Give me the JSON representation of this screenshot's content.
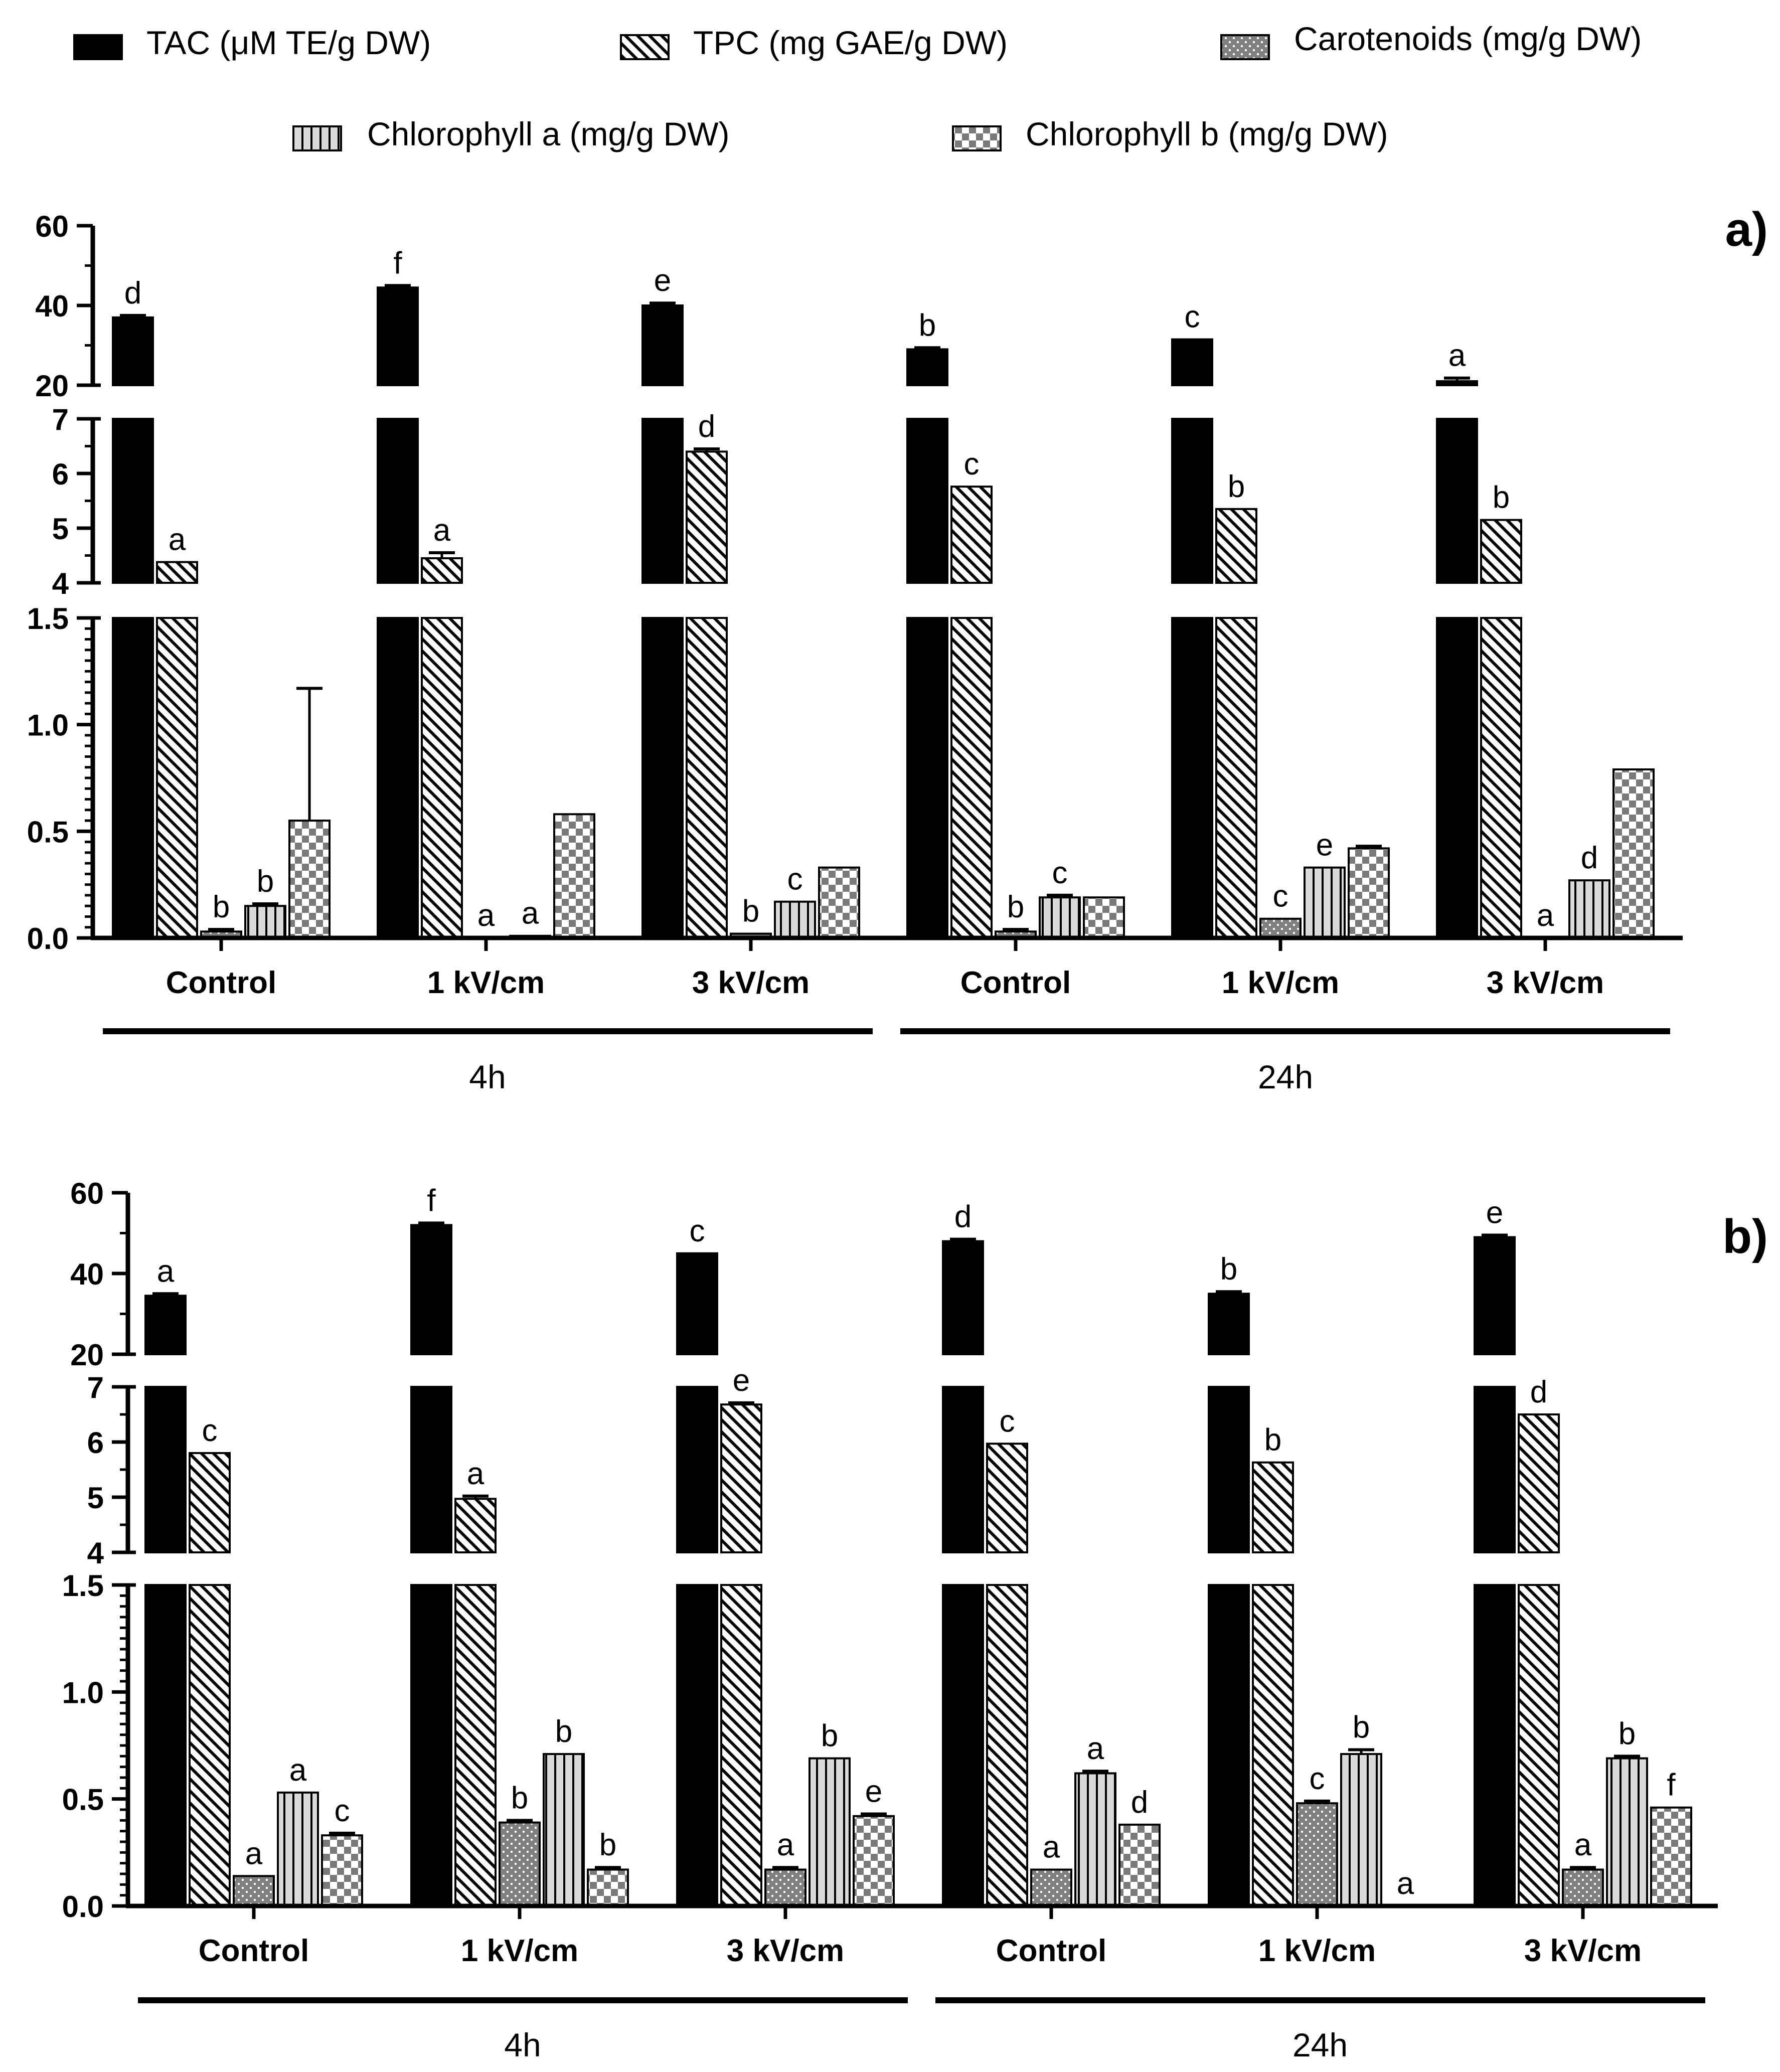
{
  "legend": {
    "items": [
      {
        "key": "tac",
        "label": "TAC (μM TE/g DW)",
        "pattern": "solid"
      },
      {
        "key": "tpc",
        "label": "TPC (mg GAE/g DW)",
        "pattern": "diag"
      },
      {
        "key": "car",
        "label": "Carotenoids (mg/g DW)",
        "pattern": "dots"
      },
      {
        "key": "cha",
        "label": "Chlorophyll a (mg/g DW)",
        "pattern": "vlines"
      },
      {
        "key": "chb",
        "label": "Chlorophyll b (mg/g DW)",
        "pattern": "checker"
      }
    ]
  },
  "chart_data": [
    {
      "type": "bar",
      "panel_label": "a)",
      "series_names": [
        "TAC (μM TE/g DW)",
        "TPC (mg GAE/g DW)",
        "Carotenoids (mg/g DW)",
        "Chlorophyll a (mg/g DW)",
        "Chlorophyll b (mg/g DW)"
      ],
      "categories": [
        "Control",
        "1 kV/cm",
        "3 kV/cm",
        "Control",
        "1 kV/cm",
        "3 kV/cm"
      ],
      "groups": [
        {
          "label": "4h",
          "categories": [
            0,
            1,
            2
          ]
        },
        {
          "label": "24h",
          "categories": [
            3,
            4,
            5
          ]
        }
      ],
      "axis_segments": [
        {
          "range": [
            20,
            60
          ],
          "ticks": [
            "20",
            "40",
            "60"
          ]
        },
        {
          "range": [
            4,
            7
          ],
          "ticks": [
            "4",
            "5",
            "6",
            "7"
          ]
        },
        {
          "range": [
            0,
            1.5
          ],
          "ticks": [
            "0.0",
            "0.5",
            "1.0",
            "1.5"
          ]
        }
      ],
      "series": [
        {
          "name": "TAC (μM TE/g DW)",
          "values": [
            37,
            44.5,
            40,
            29,
            31.5,
            21
          ],
          "errors": [
            0.5,
            0.5,
            0.6,
            0.4,
            0,
            0.8
          ],
          "letters": [
            "d",
            "f",
            "e",
            "b",
            "c",
            "a"
          ]
        },
        {
          "name": "TPC (mg GAE/g DW)",
          "values": [
            4.38,
            4.45,
            6.4,
            5.76,
            5.35,
            5.15
          ],
          "errors": [
            0,
            0.1,
            0.05,
            0,
            0,
            0
          ],
          "letters": [
            "a",
            "a",
            "d",
            "c",
            "b",
            "b"
          ]
        },
        {
          "name": "Carotenoids (mg/g DW)",
          "values": [
            0.03,
            0,
            0.02,
            0.03,
            0.09,
            0
          ],
          "errors": [
            0.01,
            0,
            0,
            0.01,
            0,
            0
          ],
          "letters": [
            "b",
            "a",
            "b",
            "b",
            "c",
            "a"
          ]
        },
        {
          "name": "Chlorophyll a (mg/g DW)",
          "values": [
            0.15,
            0.01,
            0.17,
            0.19,
            0.33,
            0.27
          ],
          "errors": [
            0.01,
            0,
            0,
            0.01,
            0,
            0
          ],
          "letters": [
            "b",
            "a",
            "c",
            "c",
            "e",
            "d"
          ]
        },
        {
          "name": "Chlorophyll b (mg/g DW)",
          "values": [
            0.55,
            0.58,
            0.33,
            0.19,
            0.42,
            0.79
          ],
          "errors": [
            0.62,
            0,
            0,
            0,
            0.01,
            0
          ],
          "letters": [
            "",
            "",
            "",
            "",
            "",
            ""
          ]
        }
      ]
    },
    {
      "type": "bar",
      "panel_label": "b)",
      "series_names": [
        "TAC (μM TE/g DW)",
        "TPC (mg GAE/g DW)",
        "Carotenoids (mg/g DW)",
        "Chlorophyll a (mg/g DW)",
        "Chlorophyll b (mg/g DW)"
      ],
      "categories": [
        "Control",
        "1 kV/cm",
        "3 kV/cm",
        "Control",
        "1 kV/cm",
        "3 kV/cm"
      ],
      "groups": [
        {
          "label": "4h",
          "categories": [
            0,
            1,
            2
          ]
        },
        {
          "label": "24h",
          "categories": [
            3,
            4,
            5
          ]
        }
      ],
      "axis_segments": [
        {
          "range": [
            20,
            60
          ],
          "ticks": [
            "20",
            "40",
            "60"
          ]
        },
        {
          "range": [
            4,
            7
          ],
          "ticks": [
            "4",
            "5",
            "6",
            "7"
          ]
        },
        {
          "range": [
            0,
            1.5
          ],
          "ticks": [
            "0.0",
            "0.5",
            "1.0",
            "1.5"
          ]
        }
      ],
      "series": [
        {
          "name": "TAC (μM TE/g DW)",
          "values": [
            34.5,
            52,
            45,
            48,
            35,
            49
          ],
          "errors": [
            0.5,
            0.5,
            0,
            0.5,
            0.5,
            0.5
          ],
          "letters": [
            "a",
            "f",
            "c",
            "d",
            "b",
            "e"
          ]
        },
        {
          "name": "TPC (mg GAE/g DW)",
          "values": [
            5.8,
            4.97,
            6.68,
            5.97,
            5.63,
            6.5
          ],
          "errors": [
            0,
            0.05,
            0.03,
            0,
            0,
            0
          ],
          "letters": [
            "c",
            "a",
            "e",
            "c",
            "b",
            "d"
          ]
        },
        {
          "name": "Carotenoids (mg/g DW)",
          "values": [
            0.14,
            0.39,
            0.17,
            0.17,
            0.48,
            0.17
          ],
          "errors": [
            0,
            0.01,
            0.01,
            0,
            0.01,
            0.01
          ],
          "letters": [
            "a",
            "b",
            "a",
            "a",
            "c",
            "a"
          ]
        },
        {
          "name": "Chlorophyll a (mg/g DW)",
          "values": [
            0.53,
            0.71,
            0.69,
            0.62,
            0.71,
            0.69
          ],
          "errors": [
            0,
            0,
            0,
            0.01,
            0.02,
            0.01
          ],
          "letters": [
            "a",
            "b",
            "b",
            "a",
            "b",
            "b"
          ]
        },
        {
          "name": "Chlorophyll b (mg/g DW)",
          "values": [
            0.33,
            0.17,
            0.42,
            0.38,
            0,
            0.46
          ],
          "errors": [
            0.01,
            0.01,
            0.01,
            0,
            0,
            0
          ],
          "letters": [
            "c",
            "b",
            "e",
            "d",
            "a",
            "f"
          ]
        }
      ]
    }
  ]
}
